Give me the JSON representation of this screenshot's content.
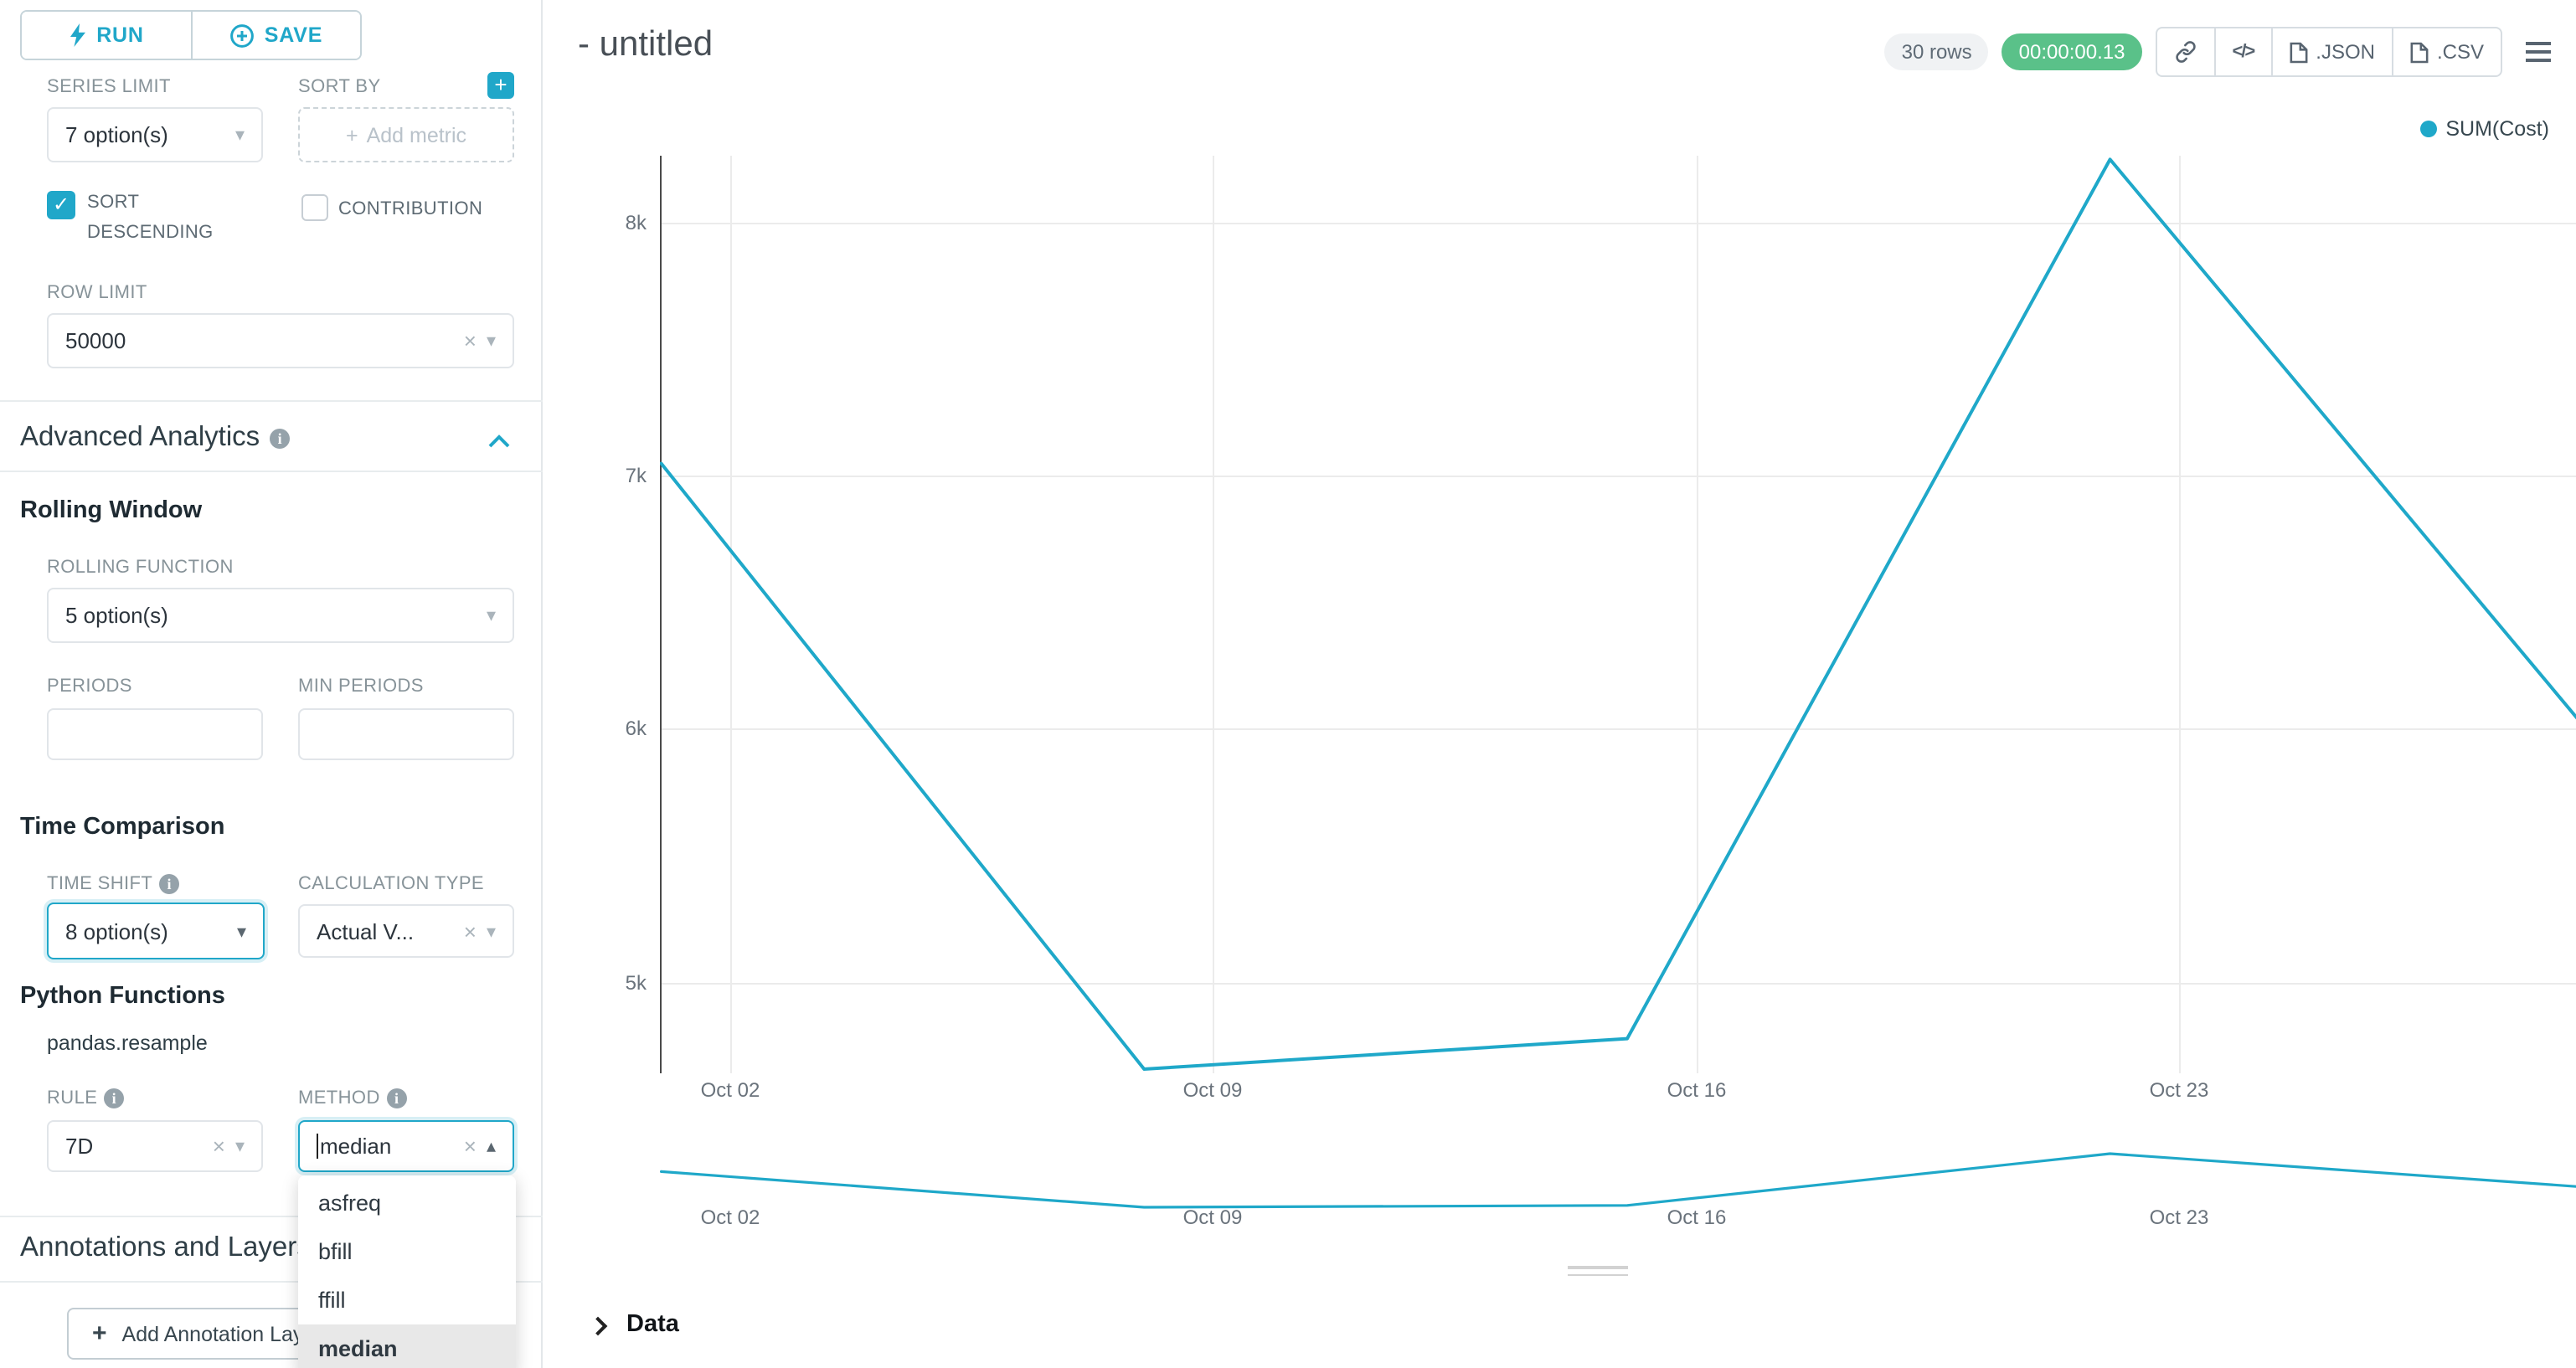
{
  "colors": {
    "accent": "#20A7C9",
    "line": "#1FA8C9",
    "timer_green": "#5AC189"
  },
  "sidebar": {
    "run_label": "RUN",
    "save_label": "SAVE",
    "series_limit": {
      "label": "SERIES LIMIT",
      "value": "7 option(s)"
    },
    "sort_by": {
      "label": "SORT BY",
      "placeholder": "Add metric"
    },
    "sort_descending_label": "SORT DESCENDING",
    "contribution_label": "CONTRIBUTION",
    "row_limit": {
      "label": "ROW LIMIT",
      "value": "50000"
    },
    "advanced_analytics_title": "Advanced Analytics",
    "rolling_window": {
      "title": "Rolling Window",
      "rolling_function_label": "ROLLING FUNCTION",
      "rolling_function_value": "5 option(s)",
      "periods_label": "PERIODS",
      "min_periods_label": "MIN PERIODS"
    },
    "time_comparison": {
      "title": "Time Comparison",
      "time_shift_label": "TIME SHIFT",
      "time_shift_value": "8 option(s)",
      "calculation_type_label": "CALCULATION TYPE",
      "calculation_type_value": "Actual V..."
    },
    "python_functions": {
      "title": "Python Functions",
      "subtitle": "pandas.resample",
      "rule_label": "RULE",
      "rule_value": "7D",
      "method_label": "METHOD",
      "method_value": "median",
      "method_options": [
        "asfreq",
        "bfill",
        "ffill",
        "median"
      ],
      "method_selected": "median"
    },
    "annotations": {
      "title": "Annotations and Layers",
      "add_button": "Add Annotation Layer"
    }
  },
  "header": {
    "title": "- untitled",
    "rows_badge": "30 rows",
    "timer": "00:00:00.13",
    "json_label": ".JSON",
    "csv_label": ".CSV"
  },
  "data_panel": {
    "label": "Data"
  },
  "chart_data": {
    "type": "line",
    "title": "- untitled",
    "legend": [
      "SUM(Cost)"
    ],
    "legend_position": "top-right",
    "grid": true,
    "color": "#1FA8C9",
    "x": [
      "Oct 01",
      "Oct 08",
      "Oct 15",
      "Oct 22",
      "Oct 29"
    ],
    "x_days": [
      0,
      7,
      14,
      21,
      28
    ],
    "series": [
      {
        "name": "SUM(Cost)",
        "values": [
          7050,
          4660,
          4780,
          8250,
          5970
        ]
      }
    ],
    "x_tick_labels": [
      "Oct 02",
      "Oct 09",
      "Oct 16",
      "Oct 23"
    ],
    "y_tick_labels": [
      "8k",
      "7k",
      "6k",
      "5k"
    ],
    "y_tick_values": [
      8000,
      7000,
      6000,
      5000
    ],
    "ylim": [
      4500,
      8400
    ],
    "has_mini_preview_chart": true
  }
}
